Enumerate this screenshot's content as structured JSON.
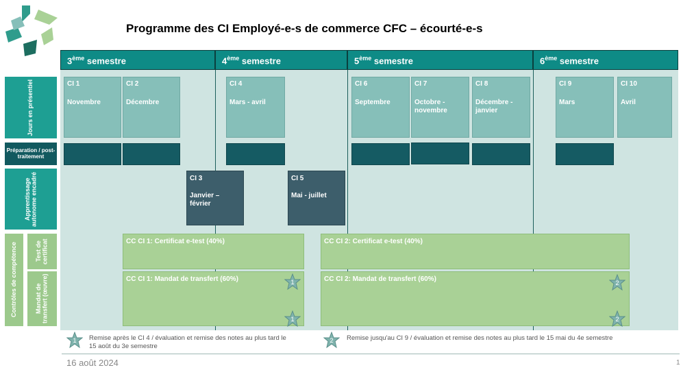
{
  "title": "Programme des CI Employé-e-s de commerce CFC – écourté-e-s",
  "semesters": [
    {
      "num": "3",
      "sup": "ème",
      "label": " semestre"
    },
    {
      "num": "4",
      "sup": "ème",
      "label": " semestre"
    },
    {
      "num": "5",
      "sup": "ème",
      "label": " semestre"
    },
    {
      "num": "6",
      "sup": "ème",
      "label": " semestre"
    }
  ],
  "row_labels": {
    "presence": "Jours en présentiel",
    "prep": "Préparation / post-traitement",
    "autonomous": "Apprentissage autonome encadré",
    "competence": "Contrôles de compétence",
    "test": "Test de certificat",
    "mandat": "Mandat de transfert (œuvre)"
  },
  "ci_blocks": [
    {
      "name": "CI 1",
      "period": "Novembre"
    },
    {
      "name": "CI 2",
      "period": "Décembre"
    },
    {
      "name": "CI 4",
      "period": "Mars - avril"
    },
    {
      "name": "CI 6",
      "period": "Septembre"
    },
    {
      "name": "CI 7",
      "period": "Octobre - novembre"
    },
    {
      "name": "CI 8",
      "period": "Décembre - janvier"
    },
    {
      "name": "CI 9",
      "period": "Mars"
    },
    {
      "name": "CI 10",
      "period": "Avril"
    }
  ],
  "autonomous_blocks": [
    {
      "name": "CI 3",
      "period": "Janvier – février"
    },
    {
      "name": "CI 5",
      "period": "Mai - juillet"
    }
  ],
  "cc_blocks": {
    "test1": "CC CI 1: Certificat e-test (40%)",
    "test2": "CC CI 2: Certificat e-test (40%)",
    "mandat1": "CC CI 1: Mandat de transfert (60%)",
    "mandat2": "CC CI 2: Mandat de transfert (60%)"
  },
  "stars": {
    "one": "1",
    "two": "2"
  },
  "legend": {
    "item1": "Remise après le CI 4 / évaluation et remise des notes au plus tard le 15 août du 3e semestre",
    "item2": "Remise jusqu'au CI 9 / évaluation et remise des notes au plus tard le 15 mai du 4e semestre"
  },
  "footer": {
    "date": "16 août 2024",
    "page": "1"
  },
  "colors": {
    "header_teal": "#0e8b86",
    "ci_light": "#86bfb9",
    "prep_dark": "#155b63",
    "auto_slate": "#3d5e6b",
    "cc_green": "#a9d196",
    "band": "#cfe4e1"
  }
}
